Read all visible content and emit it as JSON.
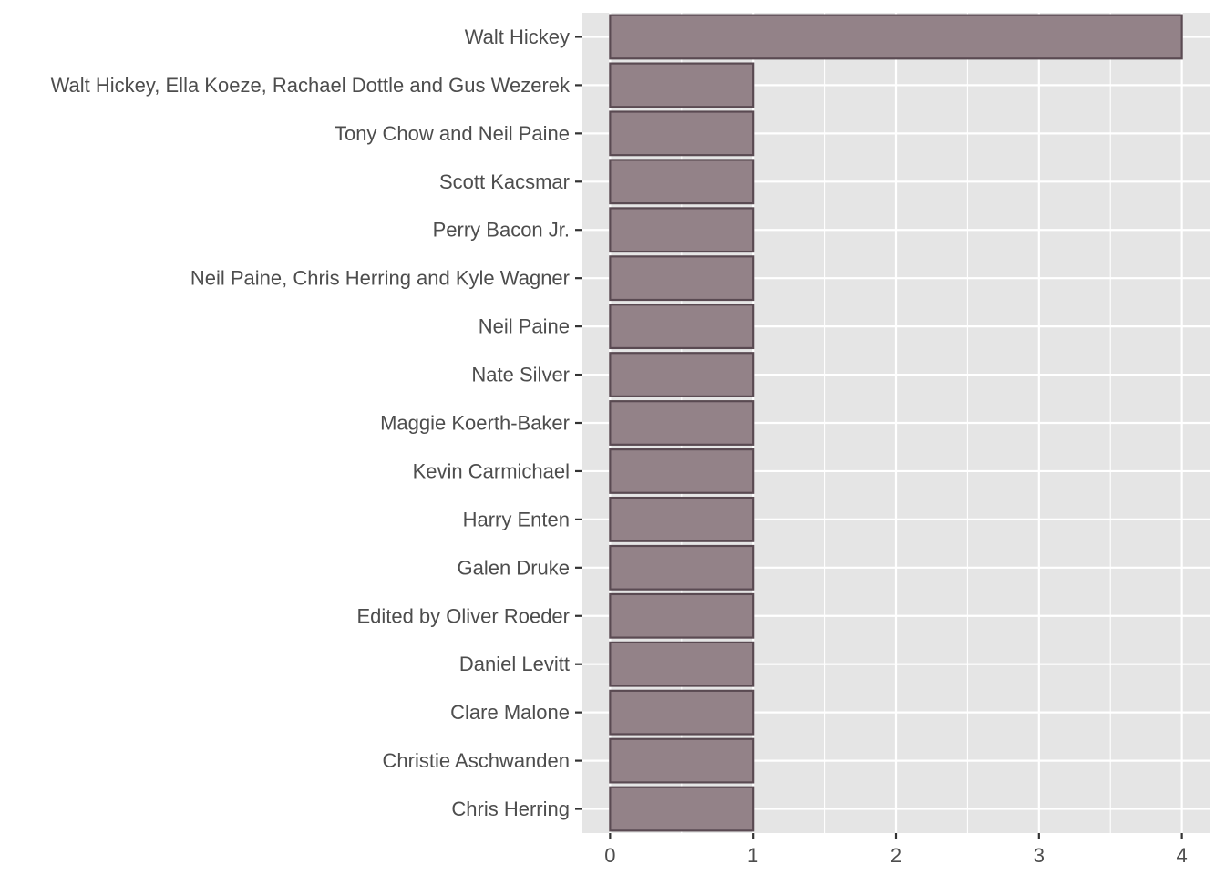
{
  "chart_data": {
    "type": "bar",
    "orientation": "horizontal",
    "title": "",
    "xlabel": "",
    "ylabel": "",
    "categories": [
      "Walt Hickey",
      "Walt Hickey, Ella Koeze, Rachael Dottle and Gus Wezerek",
      "Tony Chow and Neil Paine",
      "Scott Kacsmar",
      "Perry Bacon Jr.",
      "Neil Paine, Chris Herring and Kyle Wagner",
      "Neil Paine",
      "Nate Silver",
      "Maggie Koerth-Baker",
      "Kevin Carmichael",
      "Harry Enten",
      "Galen Druke",
      "Edited by Oliver Roeder",
      "Daniel Levitt",
      "Clare Malone",
      "Christie Aschwanden",
      "Chris Herring"
    ],
    "values": [
      4,
      1,
      1,
      1,
      1,
      1,
      1,
      1,
      1,
      1,
      1,
      1,
      1,
      1,
      1,
      1,
      1
    ],
    "xlim": [
      -0.2,
      4.2
    ],
    "x_ticks": [
      0,
      1,
      2,
      3,
      4
    ],
    "x_tick_labels": [
      "0",
      "1",
      "2",
      "3",
      "4"
    ],
    "grid": true,
    "colors": {
      "bar_fill": "#938288",
      "bar_stroke": "#5a4a52",
      "panel": "#e5e5e5",
      "grid": "#ffffff",
      "text": "#4d4d4d",
      "tick": "#333333"
    }
  }
}
